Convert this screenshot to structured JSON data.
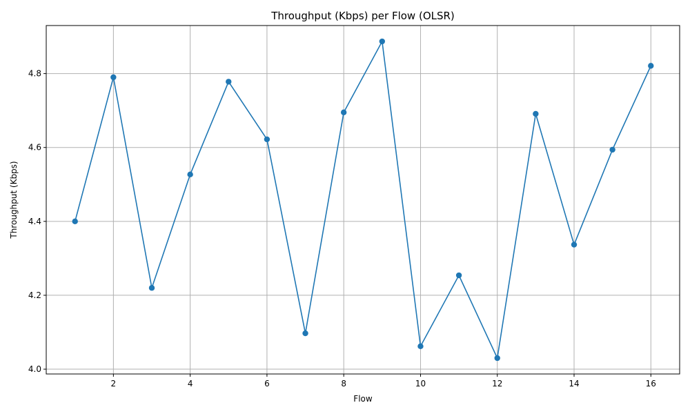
{
  "chart_data": {
    "type": "line",
    "title": "Throughput (Kbps) per Flow (OLSR)",
    "xlabel": "Flow",
    "ylabel": "Throughput (Kbps)",
    "x": [
      1,
      2,
      3,
      4,
      5,
      6,
      7,
      8,
      9,
      10,
      11,
      12,
      13,
      14,
      15,
      16
    ],
    "series": [
      {
        "values": [
          4.4,
          4.79,
          4.22,
          4.527,
          4.778,
          4.622,
          4.097,
          4.695,
          4.887,
          4.062,
          4.254,
          4.03,
          4.691,
          4.337,
          4.594,
          4.821
        ],
        "color": "#1f77b4",
        "marker": "circle"
      }
    ],
    "xlim": [
      0.25,
      16.75
    ],
    "ylim": [
      3.987,
      4.93
    ],
    "xticks": [
      2,
      4,
      6,
      8,
      10,
      12,
      14,
      16
    ],
    "yticks": [
      4.0,
      4.2,
      4.4,
      4.6,
      4.8
    ],
    "ytick_labels": [
      "4.0",
      "4.2",
      "4.4",
      "4.6",
      "4.8"
    ],
    "grid": true
  }
}
